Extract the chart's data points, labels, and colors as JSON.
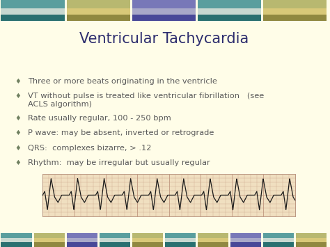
{
  "title": "Ventricular Tachycardia",
  "title_color": "#2d2d6e",
  "title_fontsize": 15,
  "background_color": "#fffde8",
  "bullet_text_color": "#5a5a5a",
  "bullet_fontsize": 8.2,
  "bullet_symbol_color": "#708060",
  "bullets": [
    "Three or more beats originating in the ventricle",
    "VT without pulse is treated like ventricular fibrillation   (see\nACLS algorithm)",
    "Rate usually regular, 100 - 250 bpm",
    "P wave: may be absent, inverted or retrograde",
    "QRS:  complexes bizarre, > .12",
    "Rhythm:  may be irregular but usually regular"
  ],
  "band_top_colors": [
    "#5a9e9e",
    "#b8b870",
    "#7878b8",
    "#5a9e9e",
    "#b8b870"
  ],
  "band_mid_colors": [
    "#c8d8d0",
    "#d8c878",
    "#a8a8c8",
    "#c8d8d0",
    "#d8c878"
  ],
  "band_bot_colors": [
    "#2a7070",
    "#908840",
    "#484898",
    "#2a7070",
    "#908840"
  ],
  "ecg_bg_color": "#f0dfc0",
  "ecg_grid_color": "#c09880",
  "ecg_line_color": "#1a1a1a"
}
